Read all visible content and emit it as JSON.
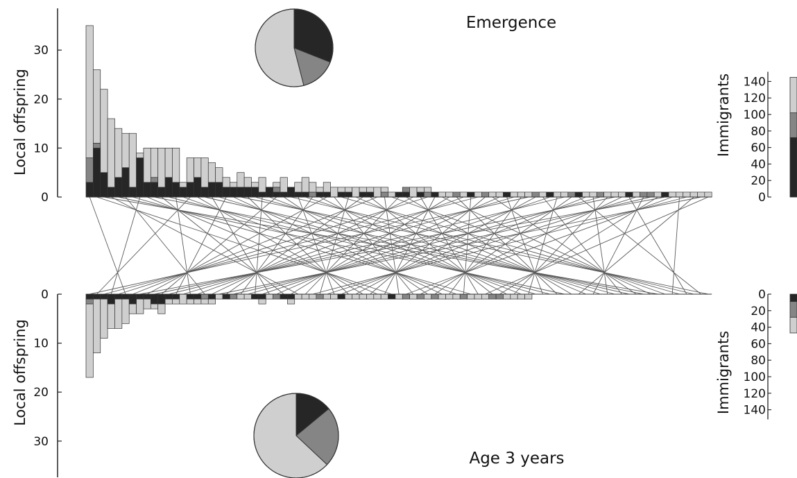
{
  "colors": {
    "dark": "#262626",
    "mid": "#858585",
    "light": "#cfcfcf",
    "axis": "#222222",
    "outline": "#333333",
    "link": "#5a5a5a"
  },
  "chart_data": [
    {
      "name": "emergence",
      "type": "bar",
      "stacked": true,
      "title": "Emergence",
      "ylabel": "Local offspring",
      "ylim": [
        0,
        35
      ],
      "yticks": [
        0,
        10,
        20,
        30
      ],
      "series_order": [
        "dark",
        "mid",
        "light"
      ],
      "bars": [
        [
          3,
          5,
          27
        ],
        [
          10,
          1,
          15
        ],
        [
          5,
          0,
          17
        ],
        [
          2,
          0,
          14
        ],
        [
          4,
          0,
          10
        ],
        [
          6,
          0,
          7
        ],
        [
          2,
          0,
          11
        ],
        [
          8,
          0,
          1
        ],
        [
          3,
          0,
          7
        ],
        [
          3,
          1,
          6
        ],
        [
          2,
          0,
          8
        ],
        [
          4,
          0,
          6
        ],
        [
          3,
          0,
          7
        ],
        [
          2,
          0,
          1
        ],
        [
          3,
          0,
          5
        ],
        [
          4,
          0,
          4
        ],
        [
          2,
          0,
          6
        ],
        [
          3,
          0,
          4
        ],
        [
          3,
          0,
          3
        ],
        [
          2,
          0,
          2
        ],
        [
          2,
          0,
          1
        ],
        [
          2,
          0,
          3
        ],
        [
          2,
          0,
          2
        ],
        [
          2,
          0,
          1
        ],
        [
          1,
          0,
          3
        ],
        [
          2,
          0,
          0
        ],
        [
          1,
          1,
          1
        ],
        [
          1,
          0,
          3
        ],
        [
          2,
          0,
          0
        ],
        [
          1,
          0,
          2
        ],
        [
          1,
          0,
          3
        ],
        [
          0,
          1,
          2
        ],
        [
          1,
          0,
          1
        ],
        [
          1,
          0,
          2
        ],
        [
          0,
          0,
          2
        ],
        [
          1,
          0,
          1
        ],
        [
          1,
          0,
          1
        ],
        [
          0,
          0,
          2
        ],
        [
          1,
          0,
          1
        ],
        [
          1,
          0,
          1
        ],
        [
          0,
          0,
          2
        ],
        [
          0,
          1,
          1
        ],
        [
          0,
          0,
          1
        ],
        [
          1,
          0,
          0
        ],
        [
          1,
          1,
          0
        ],
        [
          0,
          0,
          2
        ],
        [
          1,
          0,
          1
        ],
        [
          0,
          1,
          1
        ],
        [
          1,
          0,
          0
        ],
        [
          0,
          0,
          1
        ],
        [
          0,
          0,
          1
        ],
        [
          0,
          1,
          0
        ],
        [
          0,
          0,
          1
        ],
        [
          1,
          0,
          0
        ],
        [
          0,
          0,
          1
        ],
        [
          0,
          1,
          0
        ],
        [
          0,
          0,
          1
        ],
        [
          0,
          0,
          1
        ],
        [
          1,
          0,
          0
        ],
        [
          0,
          0,
          1
        ],
        [
          0,
          0,
          1
        ],
        [
          0,
          0,
          1
        ],
        [
          0,
          1,
          0
        ],
        [
          0,
          0,
          1
        ],
        [
          1,
          0,
          0
        ],
        [
          0,
          0,
          1
        ],
        [
          0,
          0,
          1
        ],
        [
          0,
          1,
          0
        ],
        [
          1,
          0,
          0
        ],
        [
          0,
          0,
          1
        ],
        [
          0,
          0,
          1
        ],
        [
          0,
          1,
          0
        ],
        [
          0,
          0,
          1
        ],
        [
          0,
          0,
          1
        ],
        [
          0,
          0,
          1
        ],
        [
          1,
          0,
          0
        ],
        [
          0,
          0,
          1
        ],
        [
          0,
          1,
          0
        ],
        [
          0,
          1,
          0
        ],
        [
          0,
          0,
          1
        ],
        [
          1,
          0,
          0
        ],
        [
          0,
          0,
          1
        ],
        [
          0,
          0,
          1
        ],
        [
          0,
          0,
          1
        ],
        [
          0,
          0,
          1
        ],
        [
          0,
          0,
          1
        ],
        [
          0,
          0,
          1
        ]
      ],
      "pie": {
        "values": [
          0.31,
          0.15,
          0.54
        ],
        "series": [
          "dark",
          "mid",
          "light"
        ]
      },
      "immigrants": {
        "ylabel": "Immigrants",
        "ylim": [
          0,
          145
        ],
        "yticks": [
          0,
          20,
          40,
          60,
          80,
          100,
          120,
          140
        ],
        "values": [
          72,
          30,
          43
        ]
      }
    },
    {
      "name": "age3",
      "type": "bar",
      "stacked": true,
      "inverted": true,
      "title": "Age 3 years",
      "ylabel": "Local offspring",
      "ylim": [
        0,
        35
      ],
      "yticks": [
        0,
        10,
        20,
        30
      ],
      "series_order": [
        "dark",
        "mid",
        "light"
      ],
      "bars": [
        [
          1,
          1,
          15
        ],
        [
          1,
          0,
          11
        ],
        [
          1,
          0,
          8
        ],
        [
          2,
          0,
          5
        ],
        [
          1,
          0,
          6
        ],
        [
          1,
          0,
          5
        ],
        [
          2,
          0,
          2
        ],
        [
          1,
          0,
          3
        ],
        [
          1,
          0,
          2
        ],
        [
          2,
          0,
          1
        ],
        [
          2,
          0,
          2
        ],
        [
          1,
          0,
          1
        ],
        [
          1,
          0,
          1
        ],
        [
          0,
          0,
          2
        ],
        [
          1,
          0,
          1
        ],
        [
          1,
          0,
          1
        ],
        [
          0,
          1,
          1
        ],
        [
          1,
          0,
          1
        ],
        [
          0,
          0,
          1
        ],
        [
          1,
          0,
          0
        ],
        [
          0,
          1,
          0
        ],
        [
          0,
          0,
          1
        ],
        [
          0,
          0,
          1
        ],
        [
          1,
          0,
          0
        ],
        [
          1,
          0,
          1
        ],
        [
          0,
          0,
          1
        ],
        [
          0,
          1,
          0
        ],
        [
          1,
          0,
          0
        ],
        [
          1,
          0,
          1
        ],
        [
          0,
          0,
          1
        ],
        [
          0,
          0,
          1
        ],
        [
          0,
          0,
          1
        ],
        [
          0,
          1,
          0
        ],
        [
          0,
          0,
          1
        ],
        [
          0,
          0,
          1
        ],
        [
          1,
          0,
          0
        ],
        [
          0,
          0,
          1
        ],
        [
          0,
          0,
          1
        ],
        [
          0,
          0,
          1
        ],
        [
          0,
          0,
          1
        ],
        [
          0,
          0,
          1
        ],
        [
          0,
          0,
          1
        ],
        [
          1,
          0,
          0
        ],
        [
          0,
          0,
          1
        ],
        [
          0,
          1,
          0
        ],
        [
          0,
          0,
          1
        ],
        [
          0,
          1,
          0
        ],
        [
          0,
          0,
          1
        ],
        [
          0,
          1,
          0
        ],
        [
          0,
          0,
          1
        ],
        [
          0,
          0,
          1
        ],
        [
          0,
          0,
          1
        ],
        [
          0,
          1,
          0
        ],
        [
          0,
          0,
          1
        ],
        [
          0,
          0,
          1
        ],
        [
          0,
          0,
          1
        ],
        [
          0,
          1,
          0
        ],
        [
          0,
          1,
          0
        ],
        [
          0,
          0,
          1
        ],
        [
          0,
          0,
          1
        ],
        [
          0,
          0,
          1
        ],
        [
          0,
          0,
          1
        ]
      ],
      "pie": {
        "values": [
          0.14,
          0.23,
          0.63
        ],
        "series": [
          "dark",
          "mid",
          "light"
        ]
      },
      "immigrants": {
        "ylabel": "Immigrants",
        "ylim": [
          0,
          145
        ],
        "yticks": [
          0,
          20,
          40,
          60,
          80,
          100,
          120,
          140
        ],
        "values": [
          9,
          19,
          19
        ]
      }
    }
  ],
  "links_count": 87
}
